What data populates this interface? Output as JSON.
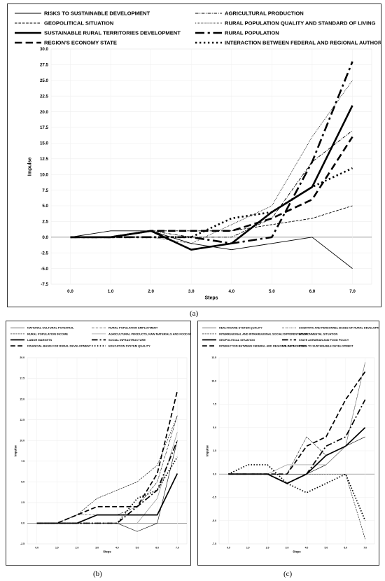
{
  "labels": {
    "a": "(a)",
    "b": "(b)",
    "c": "(c)"
  },
  "chart_data": [
    {
      "id": "a",
      "type": "line",
      "xlabel": "Steps",
      "ylabel": "Impulse",
      "x": [
        0,
        1,
        2,
        3,
        4,
        5,
        6,
        7
      ],
      "x_ticks": [
        "0.0",
        "1.0",
        "2.0",
        "3.0",
        "4.0",
        "5.0",
        "6.0",
        "7.0"
      ],
      "y_ticks": [
        "-7.5",
        "-5.0",
        "-2.5",
        "0.0",
        "2.5",
        "5.0",
        "7.5",
        "10.0",
        "12.5",
        "15.0",
        "17.5",
        "20.0",
        "22.5",
        "25.0",
        "27.5",
        "30.0"
      ],
      "ylim": [
        -7.5,
        30
      ],
      "legend_position": "top",
      "legend_columns": 2,
      "series": [
        {
          "name": "RISKS TO SUSTAINABLE DEVELOPMENT",
          "style": "solid-thin",
          "values": [
            0,
            1,
            1,
            -1,
            -2,
            -1,
            0,
            -5
          ]
        },
        {
          "name": "AGRICULTURAL PRODUCTION",
          "style": "dashdot-thin",
          "values": [
            0,
            0,
            1,
            0,
            0,
            3,
            12,
            17
          ]
        },
        {
          "name": "GEOPOLITICAL SITUATION",
          "style": "dashed-thin",
          "values": [
            0,
            0,
            1,
            1,
            1,
            2,
            3,
            5
          ]
        },
        {
          "name": "RURAL POPULATION QUALITY AND STANDARD OF LIVING",
          "style": "dotted-thin",
          "values": [
            0,
            0,
            0,
            -1,
            2,
            5,
            16,
            25
          ]
        },
        {
          "name": "SUSTAINABLE RURAL TERRITORIES DEVELOPMENT",
          "style": "solid-thick",
          "values": [
            0,
            0,
            1,
            -2,
            -1,
            4,
            8,
            21
          ]
        },
        {
          "name": "RURAL POPULATION",
          "style": "dashdot-thick",
          "values": [
            0,
            0,
            0,
            0,
            -1,
            0,
            12,
            28
          ]
        },
        {
          "name": "REGION'S ECONOMY STATE",
          "style": "dashed-thick",
          "values": [
            0,
            0,
            1,
            1,
            1,
            3,
            6,
            16
          ]
        },
        {
          "name": "INTERACTION BETWEEN FEDERAL AND REGIONAL AUTHORITIES",
          "style": "dotted-thick",
          "values": [
            0,
            0,
            0,
            0,
            3,
            4,
            8,
            11
          ]
        }
      ]
    },
    {
      "id": "b",
      "type": "line",
      "xlabel": "Steps",
      "ylabel": "Impulse",
      "x": [
        0,
        1,
        2,
        3,
        4,
        5,
        6,
        7
      ],
      "x_ticks": [
        "0.0",
        "1.0",
        "2.0",
        "3.0",
        "4.0",
        "5.0",
        "6.0",
        "7.0"
      ],
      "y_ticks": [
        "-2.5",
        "0.0",
        "2.5",
        "5.0",
        "7.5",
        "10.0",
        "12.5",
        "15.0",
        "17.5",
        "20.0"
      ],
      "ylim": [
        -2.5,
        20
      ],
      "legend_position": "top",
      "legend_columns": 2,
      "series": [
        {
          "name": "NATIONAL CULTURAL POTENTIAL",
          "style": "solid-thin",
          "values": [
            0,
            0,
            0,
            0,
            0,
            -1,
            0,
            10
          ]
        },
        {
          "name": "RURAL POPULATION EMPLOYMENT",
          "style": "dashdot-thin",
          "values": [
            0,
            0,
            1,
            1,
            1,
            2,
            5,
            13
          ]
        },
        {
          "name": "RURAL POPULATION INCOME",
          "style": "dashed-thin",
          "values": [
            0,
            0,
            1,
            3,
            4,
            5,
            7,
            13
          ]
        },
        {
          "name": "AGRICULTURAL PRODUCTS, RAW MATERIALS AND FOOD MARKETS",
          "style": "solid-gray",
          "values": [
            0,
            0,
            0,
            0,
            0,
            0,
            3,
            11
          ]
        },
        {
          "name": "LABOR MARKETS",
          "style": "solid-thick",
          "values": [
            0,
            0,
            0,
            1,
            1,
            1,
            1,
            6
          ]
        },
        {
          "name": "SOCIAL INFRASTRUCTURE",
          "style": "dashdot-thick",
          "values": [
            0,
            0,
            0,
            0,
            0,
            2,
            4,
            10
          ]
        },
        {
          "name": "FINANCIAL BASIS FOR RURAL DEVELOPMENT",
          "style": "dashed-thick",
          "values": [
            0,
            0,
            1,
            2,
            2,
            2,
            6,
            16
          ]
        },
        {
          "name": "EDUCATION SYSTEM QUALITY",
          "style": "dotted-thick",
          "values": [
            0,
            0,
            0,
            0,
            0,
            3,
            4,
            8
          ]
        }
      ]
    },
    {
      "id": "c",
      "type": "line",
      "xlabel": "Steps",
      "ylabel": "Impulse",
      "x": [
        0,
        1,
        2,
        3,
        4,
        5,
        6,
        7
      ],
      "x_ticks": [
        "0.0",
        "1.0",
        "2.0",
        "3.0",
        "4.0",
        "5.0",
        "6.0",
        "7.0"
      ],
      "y_ticks": [
        "-7.5",
        "-5.0",
        "-2.5",
        "0.0",
        "2.5",
        "5.0",
        "7.5",
        "10.0",
        "12.5"
      ],
      "ylim": [
        -7.5,
        12.5
      ],
      "legend_position": "top",
      "legend_columns": 2,
      "series": [
        {
          "name": "HEALTHCARE SYSTEM QUALITY",
          "style": "solid-thin",
          "values": [
            0,
            0,
            0,
            0,
            0,
            1,
            3,
            4
          ]
        },
        {
          "name": "SCIENTIFIC AND PERSONNEL BASES OF RURAL DEVELOPMENT",
          "style": "dashdot-thin",
          "values": [
            0,
            0,
            0,
            0,
            4,
            2,
            3,
            12
          ]
        },
        {
          "name": "INTERREGIONAL AND INTRAREGIONAL SOCIAL DIFFERENTIATION",
          "style": "dashed-thin",
          "values": [
            0,
            0,
            0,
            0,
            0,
            0,
            0,
            -7
          ]
        },
        {
          "name": "ENVIRONMENTAL SITUATION",
          "style": "solid-gray",
          "values": [
            0,
            0,
            0,
            1,
            1,
            1,
            3,
            12
          ]
        },
        {
          "name": "GEOPOLITICAL SITUATION",
          "style": "solid-thick",
          "values": [
            0,
            0,
            0,
            -1,
            0,
            2,
            3,
            5
          ]
        },
        {
          "name": "STATE AGRARIAN AND FOOD POLICY",
          "style": "dashdot-thick",
          "values": [
            0,
            0,
            0,
            -1,
            0,
            3,
            4,
            8
          ]
        },
        {
          "name": "INTERACTION BETWEEN FEDERAL AND REGIONAL AUTHORITIES",
          "style": "dashed-thick",
          "values": [
            0,
            0,
            0,
            0,
            3,
            4,
            8,
            11
          ]
        },
        {
          "name": "RISKS TO SUSTAINABLE DEVELOPMENT",
          "style": "dotted-thick",
          "values": [
            0,
            1,
            1,
            -1,
            -2,
            -1,
            0,
            -5
          ]
        }
      ]
    }
  ]
}
